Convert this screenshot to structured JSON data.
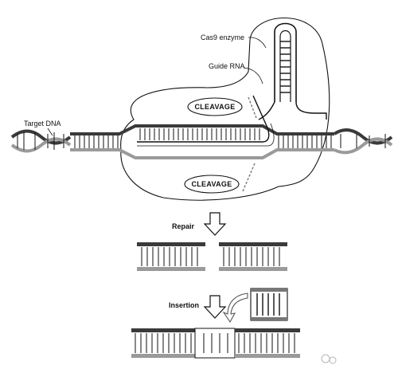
{
  "labels": {
    "cas9": "Cas9 enzyme",
    "guide_rna": "Guide RNA",
    "target_dna": "Target DNA",
    "cleavage_top": "CLEAVAGE",
    "cleavage_bottom": "CLEAVAGE",
    "repair": "Repair",
    "insertion": "Insertion"
  },
  "icons": [
    "down-arrow-icon",
    "curved-arrow-icon"
  ],
  "colors": {
    "ink": "#111111",
    "strand_dark": "#3a3a3a",
    "strand_light": "#9a9a9a",
    "background": "#ffffff"
  }
}
